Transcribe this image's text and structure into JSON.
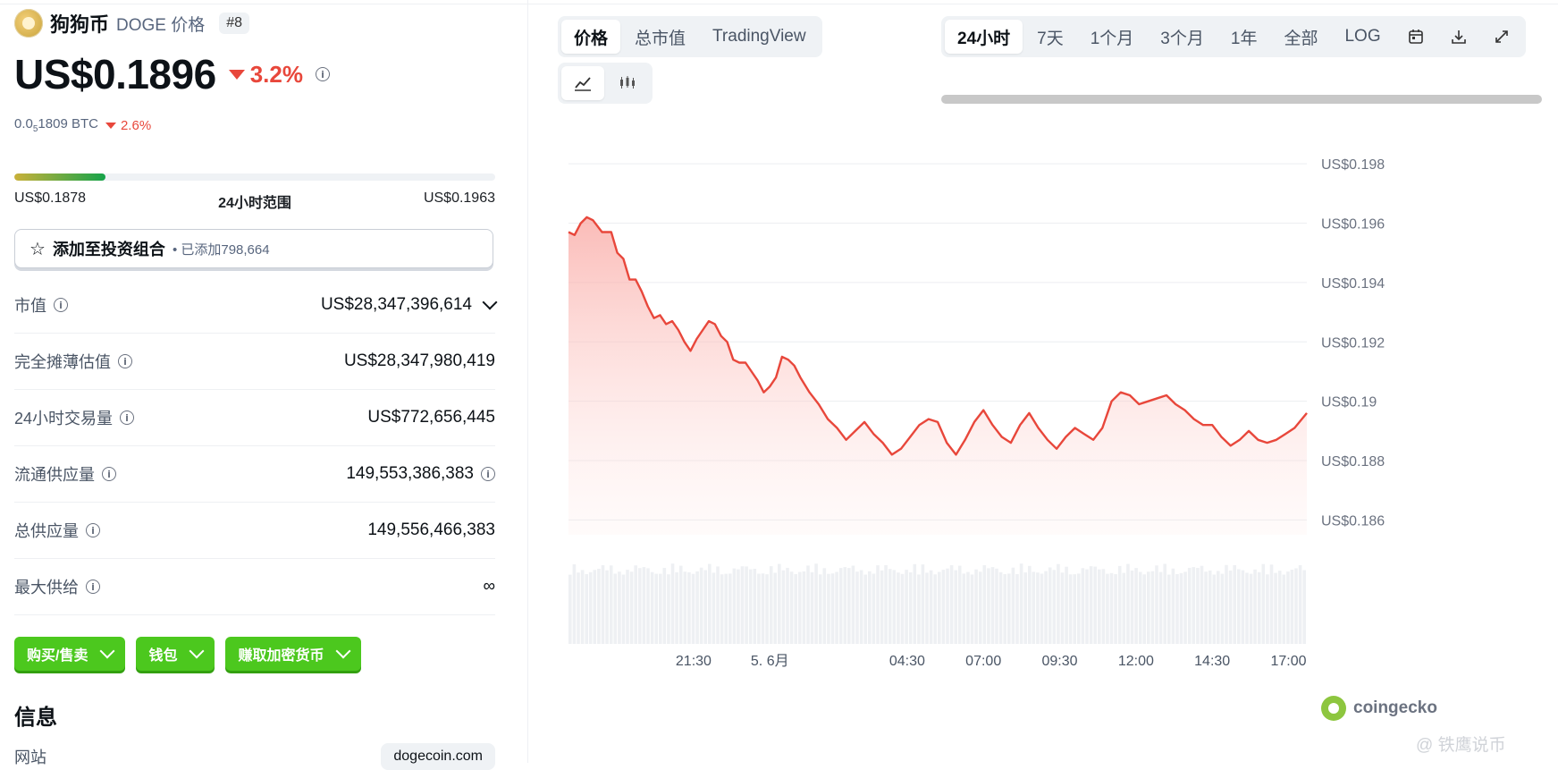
{
  "coin": {
    "name": "狗狗币",
    "symbol_label": "DOGE 价格",
    "rank": "#8",
    "price": "US$0.1896",
    "change_24h": "3.2%",
    "btc_price_prefix": "0.0",
    "btc_price_sub": "5",
    "btc_price_suffix": "1809 BTC",
    "btc_change": "2.6%"
  },
  "range": {
    "low": "US$0.1878",
    "label": "24小时范围",
    "high": "US$0.1963",
    "position_fraction": 0.19
  },
  "portfolio": {
    "label": "添加至投资组合",
    "added": "• 已添加798,664"
  },
  "stats": [
    {
      "label": "市值",
      "value": "US$28,347,396,614"
    },
    {
      "label": "完全摊薄估值",
      "value": "US$28,347,980,419"
    },
    {
      "label": "24小时交易量",
      "value": "US$772,656,445"
    },
    {
      "label": "流通供应量",
      "value": "149,553,386,383"
    },
    {
      "label": "总供应量",
      "value": "149,556,466,383"
    },
    {
      "label": "最大供给",
      "value": "∞"
    }
  ],
  "actions": {
    "buy_sell": "购买/售卖",
    "wallet": "钱包",
    "earn": "赚取加密货币"
  },
  "info": {
    "title": "信息",
    "website_label": "网站",
    "website_value": "dogecoin.com"
  },
  "chart_tabs": {
    "price": "价格",
    "market_cap": "总市值",
    "tradingview": "TradingView"
  },
  "range_tabs": [
    "24小时",
    "7天",
    "1个月",
    "3个月",
    "1年",
    "全部",
    "LOG"
  ],
  "active_range": "24小时",
  "icons": {
    "line_chart": "line-chart-icon",
    "candlestick": "candlestick-icon",
    "calendar": "calendar-icon",
    "download": "download-icon",
    "fullscreen": "fullscreen-icon"
  },
  "colors": {
    "accent_red": "#e8473b",
    "accent_green": "#4cc81e",
    "text_dark": "#0d1217"
  },
  "watermark": {
    "brand": "coingecko",
    "site": "@ 铁鹰说币"
  },
  "chart_data": {
    "type": "area",
    "title": "",
    "xlabel": "",
    "ylabel": "",
    "ylim": [
      0.1855,
      0.199
    ],
    "y_ticks": [
      "US$0.198",
      "US$0.196",
      "US$0.194",
      "US$0.192",
      "US$0.19",
      "US$0.188",
      "US$0.186"
    ],
    "y_tick_values": [
      0.198,
      0.196,
      0.194,
      0.192,
      0.19,
      0.188,
      0.186
    ],
    "x_ticks": [
      "21:30",
      "5. 6月",
      "04:30",
      "07:00",
      "09:30",
      "12:00",
      "14:30",
      "17:00"
    ],
    "x_tick_hours": [
      21.5,
      24.0,
      28.5,
      31.0,
      33.5,
      36.0,
      38.5,
      41.0
    ],
    "x_range_hours": [
      17.4,
      41.6
    ],
    "series": [
      {
        "color": "#e8473b",
        "points": [
          [
            17.4,
            0.1957
          ],
          [
            17.6,
            0.1956
          ],
          [
            17.8,
            0.196
          ],
          [
            18.0,
            0.1962
          ],
          [
            18.2,
            0.1961
          ],
          [
            18.5,
            0.1957
          ],
          [
            18.8,
            0.1957
          ],
          [
            19.0,
            0.195
          ],
          [
            19.2,
            0.1948
          ],
          [
            19.4,
            0.1941
          ],
          [
            19.6,
            0.1941
          ],
          [
            19.8,
            0.1937
          ],
          [
            20.0,
            0.1932
          ],
          [
            20.2,
            0.1928
          ],
          [
            20.4,
            0.1929
          ],
          [
            20.6,
            0.1926
          ],
          [
            20.8,
            0.1927
          ],
          [
            21.0,
            0.1924
          ],
          [
            21.2,
            0.192
          ],
          [
            21.4,
            0.1917
          ],
          [
            21.6,
            0.1921
          ],
          [
            21.8,
            0.1924
          ],
          [
            22.0,
            0.1927
          ],
          [
            22.2,
            0.1926
          ],
          [
            22.4,
            0.1922
          ],
          [
            22.6,
            0.192
          ],
          [
            22.8,
            0.1914
          ],
          [
            23.0,
            0.1913
          ],
          [
            23.2,
            0.1913
          ],
          [
            23.4,
            0.191
          ],
          [
            23.6,
            0.1907
          ],
          [
            23.8,
            0.1903
          ],
          [
            24.0,
            0.1905
          ],
          [
            24.2,
            0.1908
          ],
          [
            24.4,
            0.1915
          ],
          [
            24.6,
            0.1914
          ],
          [
            24.8,
            0.1912
          ],
          [
            25.0,
            0.1908
          ],
          [
            25.3,
            0.1903
          ],
          [
            25.6,
            0.1899
          ],
          [
            25.9,
            0.1894
          ],
          [
            26.2,
            0.1891
          ],
          [
            26.5,
            0.1887
          ],
          [
            26.8,
            0.189
          ],
          [
            27.1,
            0.1893
          ],
          [
            27.4,
            0.1889
          ],
          [
            27.7,
            0.1886
          ],
          [
            28.0,
            0.1882
          ],
          [
            28.3,
            0.1884
          ],
          [
            28.6,
            0.1888
          ],
          [
            28.9,
            0.1892
          ],
          [
            29.2,
            0.1894
          ],
          [
            29.5,
            0.1893
          ],
          [
            29.8,
            0.1886
          ],
          [
            30.1,
            0.1882
          ],
          [
            30.4,
            0.1887
          ],
          [
            30.7,
            0.1893
          ],
          [
            31.0,
            0.1897
          ],
          [
            31.3,
            0.1892
          ],
          [
            31.6,
            0.1888
          ],
          [
            31.9,
            0.1886
          ],
          [
            32.2,
            0.1892
          ],
          [
            32.5,
            0.1896
          ],
          [
            32.8,
            0.1891
          ],
          [
            33.1,
            0.1887
          ],
          [
            33.4,
            0.1884
          ],
          [
            33.7,
            0.1888
          ],
          [
            34.0,
            0.1891
          ],
          [
            34.3,
            0.1889
          ],
          [
            34.6,
            0.1887
          ],
          [
            34.9,
            0.1891
          ],
          [
            35.2,
            0.19
          ],
          [
            35.5,
            0.1903
          ],
          [
            35.8,
            0.1902
          ],
          [
            36.1,
            0.1899
          ],
          [
            36.4,
            0.19
          ],
          [
            36.7,
            0.1901
          ],
          [
            37.0,
            0.1902
          ],
          [
            37.3,
            0.1899
          ],
          [
            37.6,
            0.1897
          ],
          [
            37.9,
            0.1894
          ],
          [
            38.2,
            0.1892
          ],
          [
            38.5,
            0.1892
          ],
          [
            38.8,
            0.1888
          ],
          [
            39.1,
            0.1885
          ],
          [
            39.4,
            0.1887
          ],
          [
            39.7,
            0.189
          ],
          [
            40.0,
            0.1887
          ],
          [
            40.3,
            0.1886
          ],
          [
            40.6,
            0.1887
          ],
          [
            40.9,
            0.1889
          ],
          [
            41.2,
            0.1891
          ],
          [
            41.6,
            0.1896
          ]
        ]
      }
    ],
    "volume_bars": 180,
    "grid": true,
    "legend": "none"
  }
}
